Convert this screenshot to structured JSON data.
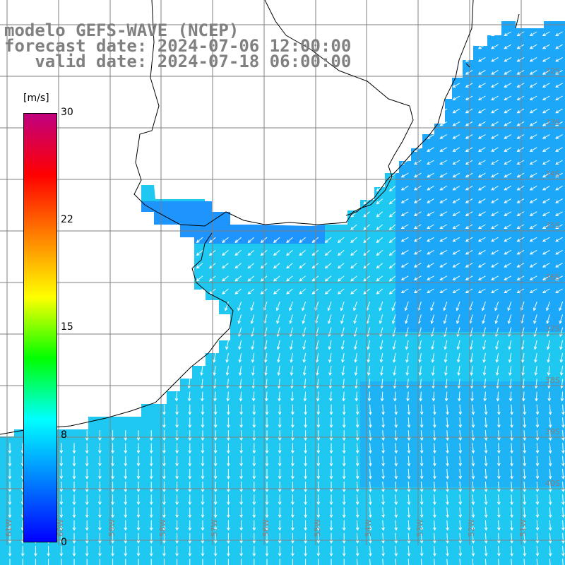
{
  "title": {
    "line1": "modelo GEFS-WAVE (NCEP)",
    "line2": "forecast date: 2024-07-06 12:00:00",
    "line3": "   valid date: 2024-07-18 06:00:00"
  },
  "colorbar": {
    "unit_label": "[m/s]",
    "ticks": [
      "30",
      "22",
      "15",
      "8",
      "0"
    ],
    "tick_values": [
      30,
      22,
      15,
      8,
      0
    ],
    "range": [
      0,
      30
    ],
    "colors_bottom_to_top": [
      "#0000ff",
      "#0080ff",
      "#00ffff",
      "#00ff00",
      "#ffff00",
      "#ff8000",
      "#ff0000",
      "#c00080"
    ]
  },
  "map": {
    "type": "wind vector map",
    "ocean_color_main": "#1ec8f0",
    "ocean_color_dark": "#1e8cff",
    "land_color": "#ffffff",
    "grid_color": "#808080",
    "arrow_color": "#ffffff",
    "lon_labels": [
      "61W",
      "60W",
      "59W",
      "58W",
      "57W",
      "56W",
      "55W",
      "54W",
      "53W",
      "52W",
      "51W"
    ],
    "lat_labels": [
      "32S",
      "33S",
      "34S",
      "35S",
      "36S",
      "37S",
      "38S",
      "39S",
      "40S"
    ]
  }
}
